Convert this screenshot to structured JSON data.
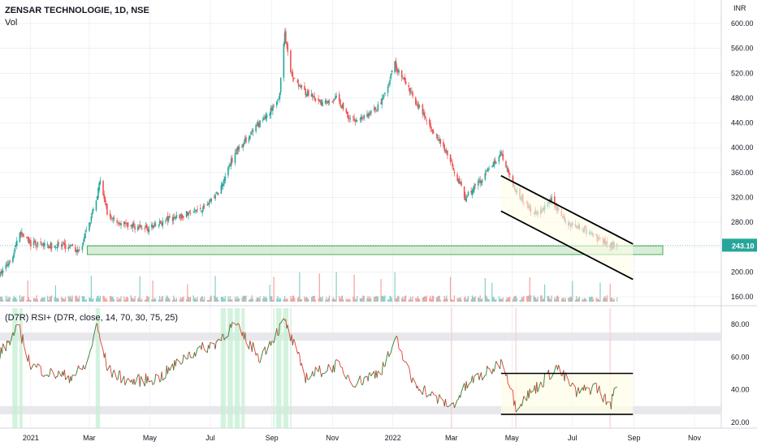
{
  "header": {
    "symbol": "ZENSAR TECHNOLOGIE, 1D, NSE",
    "volume_label": "Vol",
    "indicator": "(D7R) RSI+ (D7R, close, 14, 70, 30, 75, 25)"
  },
  "colors": {
    "up": "#26a69a",
    "down": "#ef5350",
    "zone_fill": "#c8e6c9",
    "zone_border": "#4caf50",
    "price_badge": "#26a69a",
    "rsi_up": "#2e7d32",
    "rsi_down": "#e53935",
    "channel_fill": "#fffde7",
    "grid": "#e0e3eb"
  },
  "chart_data": [
    {
      "type": "candlestick",
      "title": "ZENSAR TECHNOLOGIE, 1D, NSE",
      "currency": "INR",
      "y_ticks": [
        "600.00",
        "560.00",
        "520.00",
        "480.00",
        "440.00",
        "400.00",
        "360.00",
        "320.00",
        "280.00",
        "240.00",
        "200.00",
        "160.00"
      ],
      "ylim": [
        160,
        600
      ],
      "last_price": "243.10",
      "x_ticks": [
        "2021",
        "Mar",
        "May",
        "Jul",
        "Sep",
        "Nov",
        "2022",
        "Mar",
        "May",
        "Jul",
        "Sep",
        "Nov"
      ],
      "close_path": [
        [
          "2020-12-01",
          195
        ],
        [
          "2020-12-15",
          230
        ],
        [
          "2020-12-20",
          266
        ],
        [
          "2021-01-01",
          245
        ],
        [
          "2021-01-20",
          242
        ],
        [
          "2021-02-10",
          240
        ],
        [
          "2021-02-20",
          232
        ],
        [
          "2021-02-27",
          268
        ],
        [
          "2021-03-05",
          300
        ],
        [
          "2021-03-12",
          345
        ],
        [
          "2021-03-20",
          290
        ],
        [
          "2021-04-05",
          275
        ],
        [
          "2021-05-01",
          270
        ],
        [
          "2021-05-20",
          285
        ],
        [
          "2021-06-10",
          295
        ],
        [
          "2021-06-25",
          305
        ],
        [
          "2021-07-10",
          330
        ],
        [
          "2021-07-25",
          390
        ],
        [
          "2021-08-10",
          420
        ],
        [
          "2021-08-25",
          450
        ],
        [
          "2021-09-08",
          475
        ],
        [
          "2021-09-14",
          585
        ],
        [
          "2021-09-20",
          520
        ],
        [
          "2021-10-05",
          490
        ],
        [
          "2021-10-20",
          470
        ],
        [
          "2021-11-05",
          480
        ],
        [
          "2021-11-20",
          445
        ],
        [
          "2021-12-05",
          450
        ],
        [
          "2021-12-20",
          470
        ],
        [
          "2022-01-03",
          535
        ],
        [
          "2022-01-15",
          500
        ],
        [
          "2022-02-05",
          440
        ],
        [
          "2022-02-25",
          390
        ],
        [
          "2022-03-15",
          320
        ],
        [
          "2022-04-01",
          350
        ],
        [
          "2022-04-20",
          392
        ],
        [
          "2022-05-05",
          330
        ],
        [
          "2022-05-25",
          290
        ],
        [
          "2022-06-10",
          315
        ],
        [
          "2022-06-25",
          280
        ],
        [
          "2022-07-10",
          270
        ],
        [
          "2022-07-25",
          255
        ],
        [
          "2022-08-05",
          245
        ],
        [
          "2022-08-15",
          243.1
        ]
      ],
      "annotations": {
        "support_zone": [
          228,
          242
        ],
        "channel_upper": [
          [
            "2022-04-20",
            355
          ],
          [
            "2022-08-31",
            245
          ]
        ],
        "channel_lower": [
          [
            "2022-04-20",
            298
          ],
          [
            "2022-08-31",
            188
          ]
        ]
      }
    },
    {
      "type": "line",
      "title": "(D7R) RSI+ (D7R, close, 14, 70, 30, 75, 25)",
      "y_ticks": [
        "80.00",
        "60.00",
        "40.00",
        "20.00"
      ],
      "ylim": [
        20,
        90
      ],
      "bands": [
        75,
        70,
        30,
        25
      ],
      "rsi_path": [
        [
          "2020-12-01",
          62
        ],
        [
          "2020-12-20",
          78
        ],
        [
          "2021-01-01",
          55
        ],
        [
          "2021-01-20",
          50
        ],
        [
          "2021-02-10",
          48
        ],
        [
          "2021-02-27",
          55
        ],
        [
          "2021-03-08",
          80
        ],
        [
          "2021-03-20",
          52
        ],
        [
          "2021-04-10",
          45
        ],
        [
          "2021-05-10",
          47
        ],
        [
          "2021-06-10",
          62
        ],
        [
          "2021-07-05",
          68
        ],
        [
          "2021-07-25",
          80
        ],
        [
          "2021-08-20",
          60
        ],
        [
          "2021-09-14",
          82
        ],
        [
          "2021-10-05",
          48
        ],
        [
          "2021-11-05",
          55
        ],
        [
          "2021-11-25",
          44
        ],
        [
          "2021-12-20",
          52
        ],
        [
          "2022-01-05",
          70
        ],
        [
          "2022-01-20",
          46
        ],
        [
          "2022-02-10",
          36
        ],
        [
          "2022-03-01",
          30
        ],
        [
          "2022-03-20",
          45
        ],
        [
          "2022-04-10",
          52
        ],
        [
          "2022-04-22",
          58
        ],
        [
          "2022-05-05",
          30
        ],
        [
          "2022-06-01",
          45
        ],
        [
          "2022-06-15",
          54
        ],
        [
          "2022-07-05",
          38
        ],
        [
          "2022-07-25",
          42
        ],
        [
          "2022-08-08",
          30
        ],
        [
          "2022-08-15",
          44
        ]
      ],
      "annotations": {
        "channel_upper": [
          [
            "2022-04-20",
            50
          ],
          [
            "2022-08-31",
            50
          ]
        ],
        "channel_lower": [
          [
            "2022-04-20",
            25
          ],
          [
            "2022-08-31",
            25
          ]
        ]
      }
    }
  ]
}
